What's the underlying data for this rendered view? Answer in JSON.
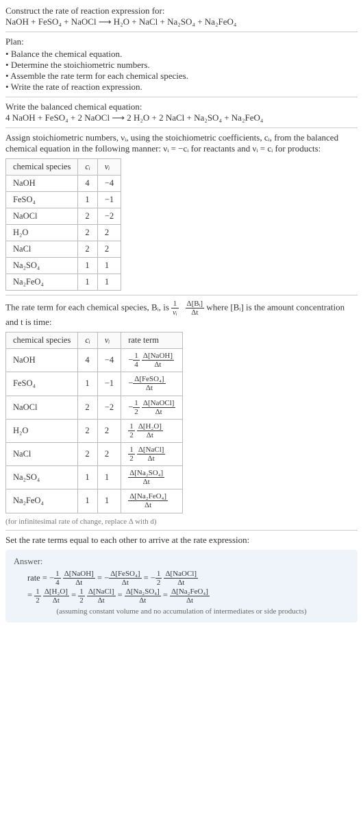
{
  "header": {
    "prompt": "Construct the rate of reaction expression for:",
    "equation": "NaOH + FeSO₄ + NaOCl  ⟶  H₂O + NaCl + Na₂SO₄ + Na₂FeO₄"
  },
  "plan": {
    "title": "Plan:",
    "items": [
      "Balance the chemical equation.",
      "Determine the stoichiometric numbers.",
      "Assemble the rate term for each chemical species.",
      "Write the rate of reaction expression."
    ]
  },
  "balanced": {
    "intro": "Write the balanced chemical equation:",
    "equation": "4 NaOH + FeSO₄ + 2 NaOCl  ⟶  2 H₂O + 2 NaCl + Na₂SO₄ + Na₂FeO₄"
  },
  "stoich": {
    "intro1": "Assign stoichiometric numbers, νᵢ, using the stoichiometric coefficients, cᵢ, from the balanced chemical equation in the following manner: νᵢ = −cᵢ for reactants and νᵢ = cᵢ for products:",
    "headers": [
      "chemical species",
      "cᵢ",
      "νᵢ"
    ],
    "rows": [
      {
        "species": "NaOH",
        "c": "4",
        "v": "−4"
      },
      {
        "species": "FeSO₄",
        "c": "1",
        "v": "−1"
      },
      {
        "species": "NaOCl",
        "c": "2",
        "v": "−2"
      },
      {
        "species": "H₂O",
        "c": "2",
        "v": "2"
      },
      {
        "species": "NaCl",
        "c": "2",
        "v": "2"
      },
      {
        "species": "Na₂SO₄",
        "c": "1",
        "v": "1"
      },
      {
        "species": "Na₂FeO₄",
        "c": "1",
        "v": "1"
      }
    ]
  },
  "rateterm": {
    "intro_a": "The rate term for each chemical species, Bᵢ, is ",
    "intro_frac_num": "1",
    "intro_frac_den": "νᵢ",
    "intro_frac2_num": "Δ[Bᵢ]",
    "intro_frac2_den": "Δt",
    "intro_b": " where [Bᵢ] is the amount concentration and t is time:",
    "headers": [
      "chemical species",
      "cᵢ",
      "νᵢ",
      "rate term"
    ],
    "rows": [
      {
        "species": "NaOH",
        "c": "4",
        "v": "−4",
        "sign": "−",
        "coef_num": "1",
        "coef_den": "4",
        "d_num": "Δ[NaOH]",
        "d_den": "Δt"
      },
      {
        "species": "FeSO₄",
        "c": "1",
        "v": "−1",
        "sign": "−",
        "coef_num": "",
        "coef_den": "",
        "d_num": "Δ[FeSO₄]",
        "d_den": "Δt"
      },
      {
        "species": "NaOCl",
        "c": "2",
        "v": "−2",
        "sign": "−",
        "coef_num": "1",
        "coef_den": "2",
        "d_num": "Δ[NaOCl]",
        "d_den": "Δt"
      },
      {
        "species": "H₂O",
        "c": "2",
        "v": "2",
        "sign": "",
        "coef_num": "1",
        "coef_den": "2",
        "d_num": "Δ[H₂O]",
        "d_den": "Δt"
      },
      {
        "species": "NaCl",
        "c": "2",
        "v": "2",
        "sign": "",
        "coef_num": "1",
        "coef_den": "2",
        "d_num": "Δ[NaCl]",
        "d_den": "Δt"
      },
      {
        "species": "Na₂SO₄",
        "c": "1",
        "v": "1",
        "sign": "",
        "coef_num": "",
        "coef_den": "",
        "d_num": "Δ[Na₂SO₄]",
        "d_den": "Δt"
      },
      {
        "species": "Na₂FeO₄",
        "c": "1",
        "v": "1",
        "sign": "",
        "coef_num": "",
        "coef_den": "",
        "d_num": "Δ[Na₂FeO₄]",
        "d_den": "Δt"
      }
    ],
    "footnote": "(for infinitesimal rate of change, replace Δ with d)"
  },
  "final": {
    "intro": "Set the rate terms equal to each other to arrive at the rate expression:",
    "answer_label": "Answer:",
    "line1_lead": "rate = ",
    "terms_line1": [
      {
        "sign": "−",
        "cn": "1",
        "cd": "4",
        "dn": "Δ[NaOH]",
        "dd": "Δt"
      },
      {
        "sign": "−",
        "cn": "",
        "cd": "",
        "dn": "Δ[FeSO₄]",
        "dd": "Δt"
      },
      {
        "sign": "−",
        "cn": "1",
        "cd": "2",
        "dn": "Δ[NaOCl]",
        "dd": "Δt"
      }
    ],
    "terms_line2": [
      {
        "sign": "",
        "cn": "1",
        "cd": "2",
        "dn": "Δ[H₂O]",
        "dd": "Δt"
      },
      {
        "sign": "",
        "cn": "1",
        "cd": "2",
        "dn": "Δ[NaCl]",
        "dd": "Δt"
      },
      {
        "sign": "",
        "cn": "",
        "cd": "",
        "dn": "Δ[Na₂SO₄]",
        "dd": "Δt"
      },
      {
        "sign": "",
        "cn": "",
        "cd": "",
        "dn": "Δ[Na₂FeO₄]",
        "dd": "Δt"
      }
    ],
    "assumption": "(assuming constant volume and no accumulation of intermediates or side products)"
  }
}
